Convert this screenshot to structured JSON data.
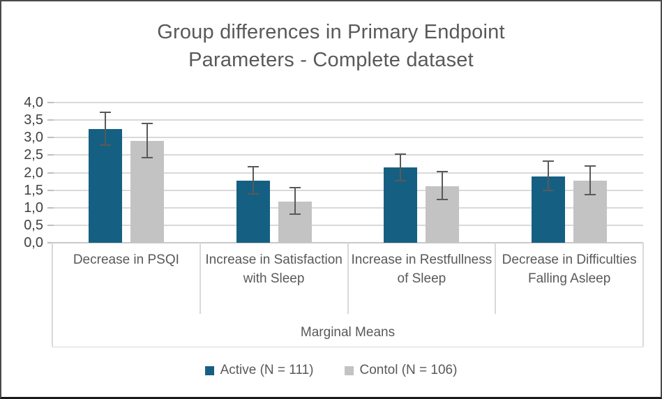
{
  "frame": {
    "background": "#ffffff",
    "border_color": "#4a4a4a"
  },
  "chart_data": {
    "type": "bar",
    "title": "Group differences in Primary Endpoint Parameters - Complete dataset",
    "title_lines": [
      "Group differences in Primary Endpoint",
      "Parameters - Complete dataset"
    ],
    "categories": [
      "Decrease in PSQI",
      "Increase in Satisfaction with Sleep",
      "Increase in Restfullness of Sleep",
      "Decrease in Difficulties Falling Asleep"
    ],
    "xlabel": "Marginal Means",
    "ylabel": "",
    "ylim": [
      0,
      4
    ],
    "ytick_step": 0.5,
    "ytick_labels": [
      "0,0",
      "0,5",
      "1,0",
      "1,5",
      "2,0",
      "2,5",
      "3,0",
      "3,5",
      "4,0"
    ],
    "grid": true,
    "legend_position": "bottom",
    "decimal_separator": ",",
    "error_bar_color": "#595959",
    "gridline_color": "#d9d9d9",
    "series": [
      {
        "name": "Active (N = 111)",
        "color": "#156082",
        "values": [
          3.24,
          1.78,
          2.14,
          1.9
        ],
        "error_low": [
          2.78,
          1.4,
          1.78,
          1.5
        ],
        "error_high": [
          3.72,
          2.17,
          2.52,
          2.32
        ]
      },
      {
        "name": "Contol (N = 106)",
        "color": "#c3c3c3",
        "values": [
          2.9,
          1.17,
          1.61,
          1.77
        ],
        "error_low": [
          2.42,
          0.82,
          1.24,
          1.38
        ],
        "error_high": [
          3.4,
          1.57,
          2.02,
          2.18
        ]
      }
    ]
  }
}
